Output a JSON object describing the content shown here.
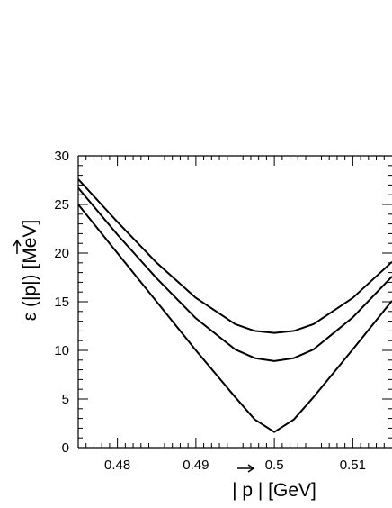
{
  "chart_data": {
    "type": "line",
    "title": "",
    "xlabel": "| p | [GeV]",
    "ylabel": "ε (|p|) [MeV]",
    "xlim": [
      0.475,
      0.515
    ],
    "ylim": [
      0,
      30
    ],
    "x_ticks": [
      0.48,
      0.49,
      0.5,
      0.51
    ],
    "x_tick_labels": [
      "0.48",
      "0.49",
      "0.5",
      "0.51"
    ],
    "y_ticks": [
      0,
      5,
      10,
      15,
      20,
      25,
      30
    ],
    "y_tick_labels": [
      "0",
      "5",
      "10",
      "15",
      "20",
      "25",
      "30"
    ],
    "grid": false,
    "legend": "none",
    "line_color": "#000000",
    "series": [
      {
        "x": [
          0.475,
          0.48,
          0.485,
          0.49,
          0.495,
          0.4975,
          0.5,
          0.5025,
          0.505,
          0.51,
          0.515
        ],
        "y": [
          25.0,
          20.0,
          15.0,
          10.0,
          5.2,
          2.9,
          1.6,
          2.9,
          5.2,
          10.1,
          15.1
        ]
      },
      {
        "x": [
          0.475,
          0.48,
          0.485,
          0.49,
          0.495,
          0.4975,
          0.5,
          0.5025,
          0.505,
          0.51,
          0.515
        ],
        "y": [
          26.7,
          21.9,
          17.4,
          13.3,
          10.1,
          9.2,
          8.9,
          9.2,
          10.1,
          13.4,
          17.6
        ]
      },
      {
        "x": [
          0.475,
          0.48,
          0.485,
          0.49,
          0.495,
          0.4975,
          0.5,
          0.5025,
          0.505,
          0.51,
          0.515
        ],
        "y": [
          27.6,
          23.2,
          19.0,
          15.4,
          12.7,
          12.0,
          11.8,
          12.0,
          12.7,
          15.4,
          19.1
        ]
      }
    ]
  }
}
